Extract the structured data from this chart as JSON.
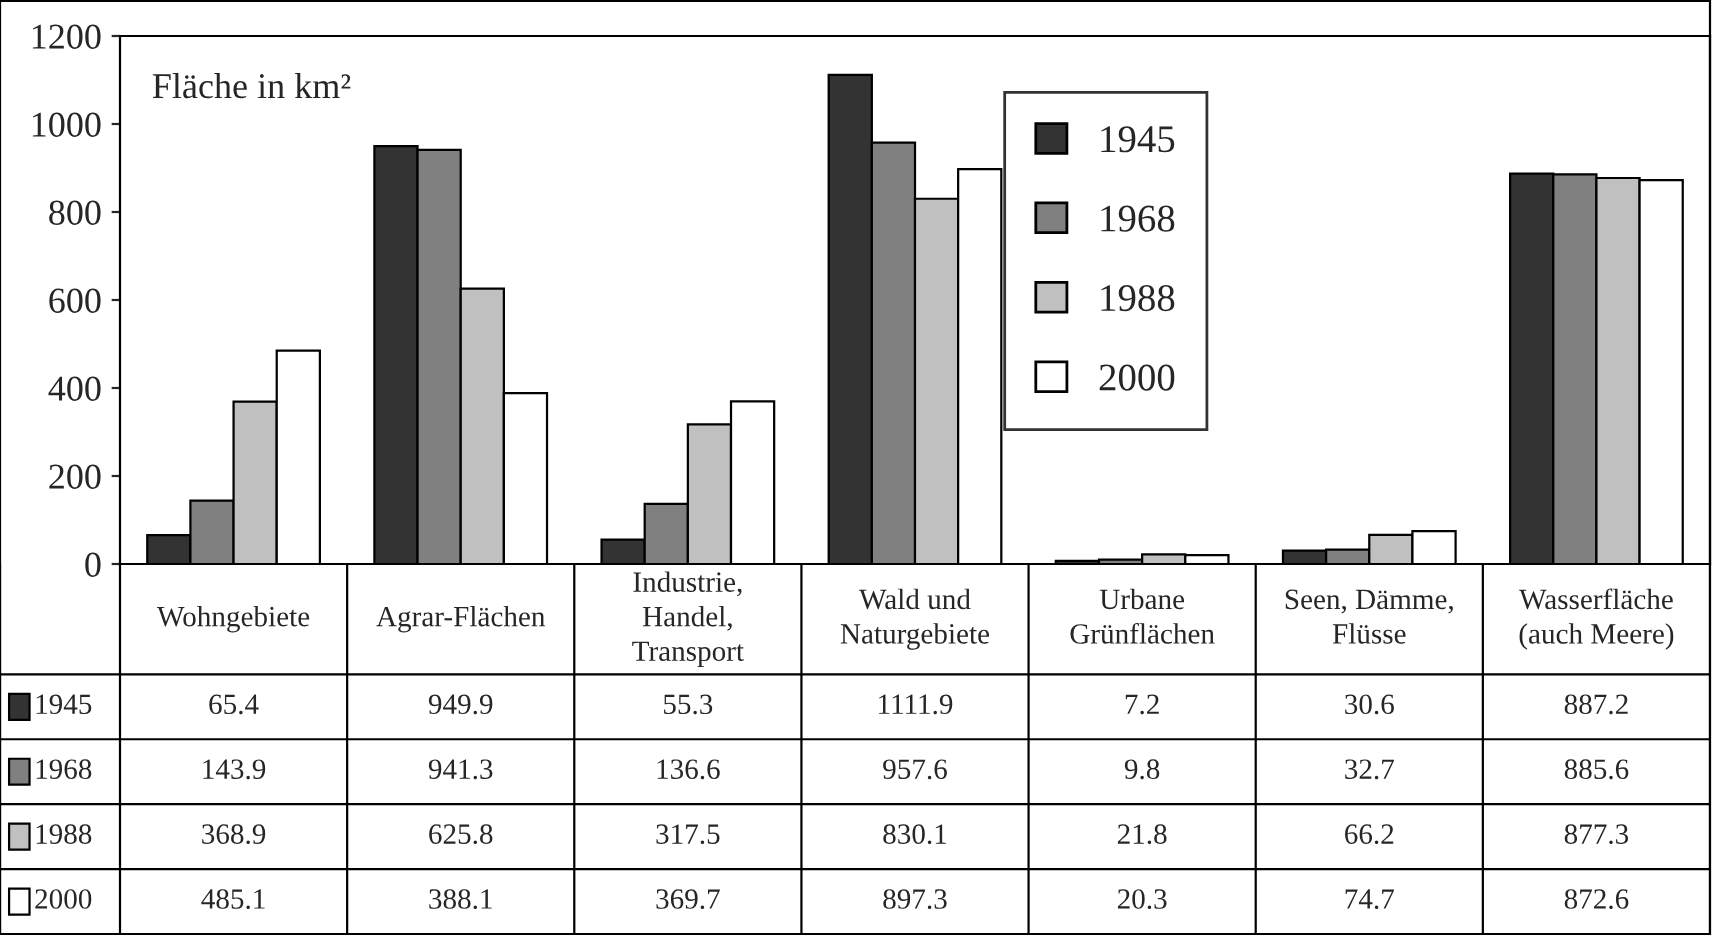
{
  "chart_data": {
    "type": "bar",
    "ylabel": "Fläche in km²",
    "categories": [
      "Wohngebiete",
      "Agrar-Flächen",
      "Industrie,\nHandel,\nTransport",
      "Wald und\nNaturgebiete",
      "Urbane\nGrünflächen",
      "Seen, Dämme,\nFlüsse",
      "Wasserfläche\n(auch Meere)"
    ],
    "series": [
      {
        "name": "1945",
        "color": "#333333",
        "values": [
          65.4,
          949.9,
          55.3,
          1111.9,
          7.2,
          30.6,
          887.2
        ]
      },
      {
        "name": "1968",
        "color": "#808080",
        "values": [
          143.9,
          941.3,
          136.6,
          957.6,
          9.8,
          32.7,
          885.6
        ]
      },
      {
        "name": "1988",
        "color": "#c0c0c0",
        "values": [
          368.9,
          625.8,
          317.5,
          830.1,
          21.8,
          66.2,
          877.3
        ]
      },
      {
        "name": "2000",
        "color": "#ffffff",
        "values": [
          485.1,
          388.1,
          369.7,
          897.3,
          20.3,
          74.7,
          872.6
        ]
      }
    ],
    "ylim": [
      0,
      1200
    ],
    "yticks": [
      0,
      200,
      400,
      600,
      800,
      1000,
      1200
    ],
    "grid": false,
    "legend": "top",
    "tick_labels": "y",
    "data_labels": true
  }
}
